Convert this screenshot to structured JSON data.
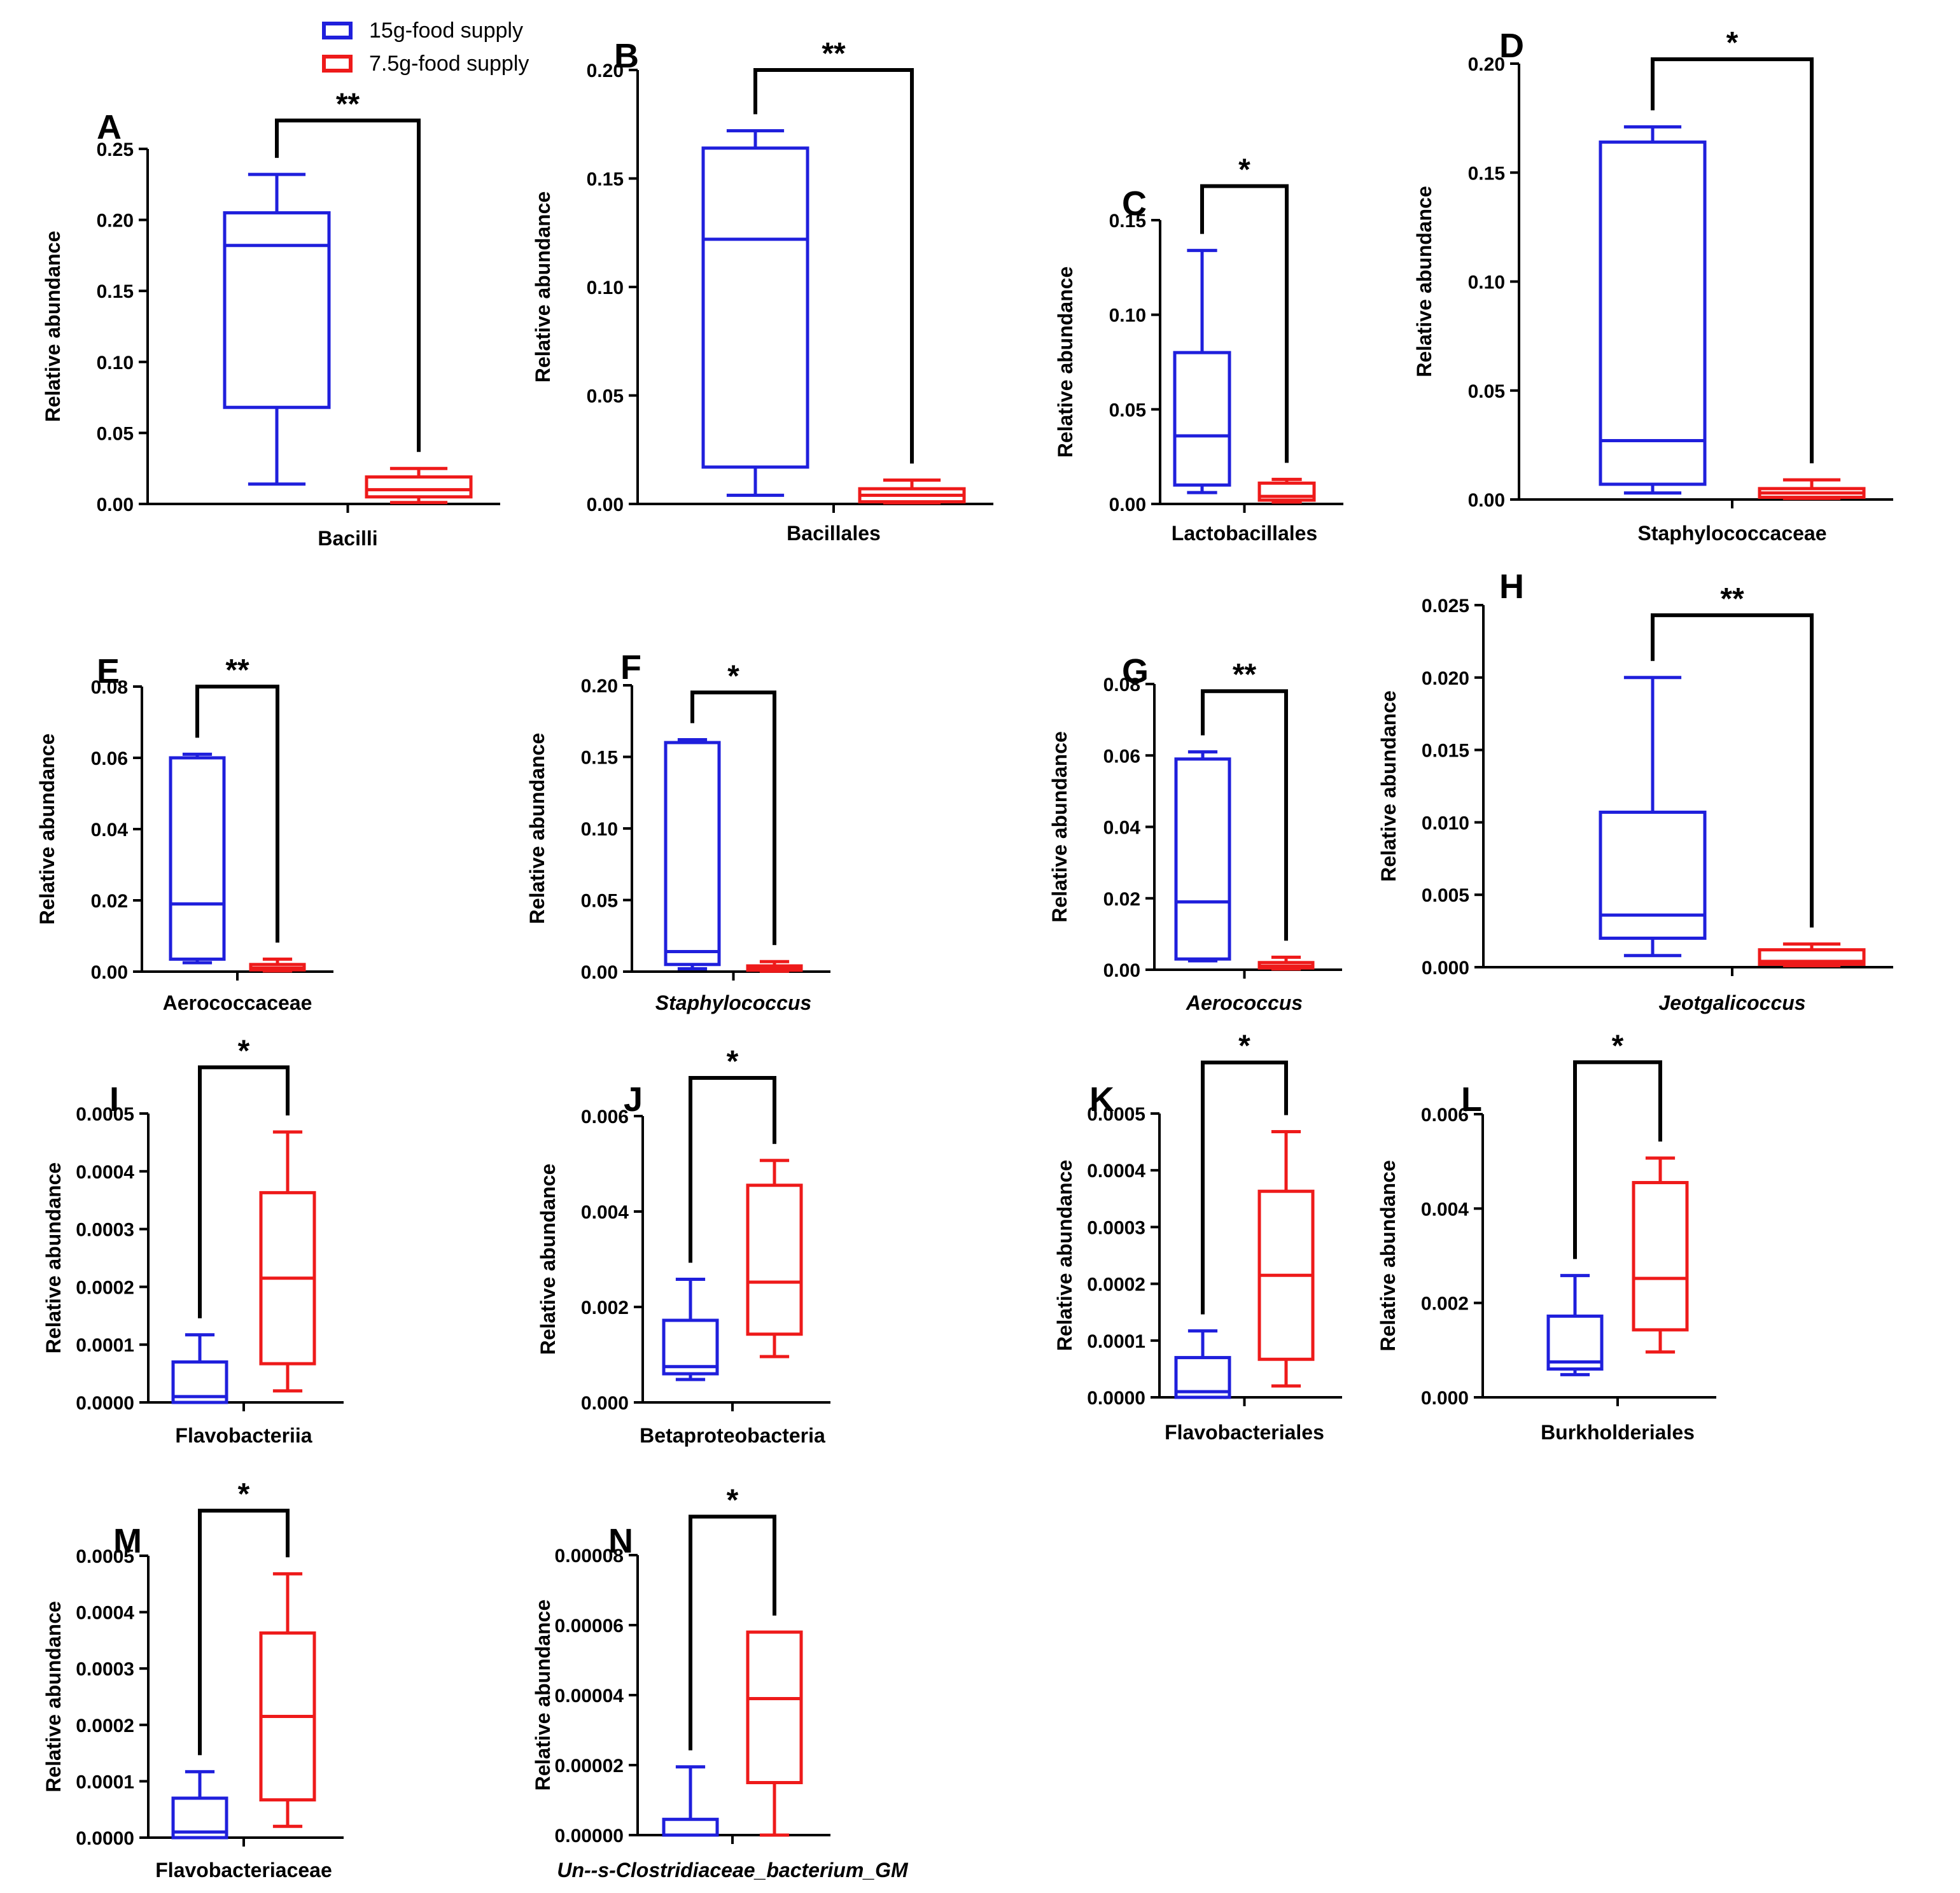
{
  "colors": {
    "group1": "#1f1fdc",
    "group2": "#ee1a1a",
    "axis": "#000000",
    "bracket": "#000000"
  },
  "legend": [
    {
      "label": "15g-food supply",
      "color": "#1f1fdc"
    },
    {
      "label": "7.5g-food supply",
      "color": "#ee1a1a"
    }
  ],
  "chart_data": [
    {
      "panel": "A",
      "type": "boxplot",
      "xlabel": "Bacilli",
      "xlabel_italic": false,
      "ylabel": "Relative abundance",
      "ylim": [
        0,
        0.25
      ],
      "ticks": [
        "0.00",
        "0.05",
        "0.10",
        "0.15",
        "0.20",
        "0.25"
      ],
      "tick_values": [
        0,
        0.05,
        0.1,
        0.15,
        0.2,
        0.25
      ],
      "groups": [
        {
          "name": "15g-food supply",
          "min": 0.014,
          "q1": 0.068,
          "median": 0.182,
          "q3": 0.205,
          "max": 0.232
        },
        {
          "name": "7.5g-food supply",
          "min": 0.001,
          "q1": 0.005,
          "median": 0.01,
          "q3": 0.019,
          "max": 0.025
        }
      ],
      "significance": "**",
      "bracket_height": 0.27
    },
    {
      "panel": "B",
      "type": "boxplot",
      "xlabel": "Bacillales",
      "xlabel_italic": false,
      "ylabel": "Relative abundance",
      "ylim": [
        0,
        0.2
      ],
      "ticks": [
        "0.00",
        "0.05",
        "0.10",
        "0.15",
        "0.20"
      ],
      "tick_values": [
        0,
        0.05,
        0.1,
        0.15,
        0.2
      ],
      "groups": [
        {
          "name": "15g-food supply",
          "min": 0.004,
          "q1": 0.017,
          "median": 0.122,
          "q3": 0.164,
          "max": 0.172
        },
        {
          "name": "7.5g-food supply",
          "min": 0.0005,
          "q1": 0.001,
          "median": 0.004,
          "q3": 0.007,
          "max": 0.011
        }
      ],
      "significance": "**",
      "bracket_height": 0.2
    },
    {
      "panel": "C",
      "type": "boxplot",
      "xlabel": "Lactobacillales",
      "xlabel_italic": false,
      "ylabel": "Relative abundance",
      "ylim": [
        0,
        0.15
      ],
      "ticks": [
        "0.00",
        "0.05",
        "0.10",
        "0.15"
      ],
      "tick_values": [
        0,
        0.05,
        0.1,
        0.15
      ],
      "groups": [
        {
          "name": "15g-food supply",
          "min": 0.006,
          "q1": 0.01,
          "median": 0.036,
          "q3": 0.08,
          "max": 0.134
        },
        {
          "name": "7.5g-food supply",
          "min": 0.001,
          "q1": 0.002,
          "median": 0.004,
          "q3": 0.011,
          "max": 0.013
        }
      ],
      "significance": "*",
      "bracket_height": 0.168
    },
    {
      "panel": "D",
      "type": "boxplot",
      "xlabel": "Staphylococcaceae",
      "xlabel_italic": false,
      "ylabel": "Relative abundance",
      "ylim": [
        0,
        0.2
      ],
      "ticks": [
        "0.00",
        "0.05",
        "0.10",
        "0.15",
        "0.20"
      ],
      "tick_values": [
        0,
        0.05,
        0.1,
        0.15,
        0.2
      ],
      "groups": [
        {
          "name": "15g-food supply",
          "min": 0.003,
          "q1": 0.007,
          "median": 0.027,
          "q3": 0.164,
          "max": 0.171
        },
        {
          "name": "7.5g-food supply",
          "min": 0.0005,
          "q1": 0.001,
          "median": 0.003,
          "q3": 0.005,
          "max": 0.009
        }
      ],
      "significance": "*",
      "bracket_height": 0.202
    },
    {
      "panel": "E",
      "type": "boxplot",
      "xlabel": "Aerococcaceae",
      "xlabel_italic": false,
      "ylabel": "Relative abundance",
      "ylim": [
        0,
        0.08
      ],
      "ticks": [
        "0.00",
        "0.02",
        "0.04",
        "0.06",
        "0.08"
      ],
      "tick_values": [
        0,
        0.02,
        0.04,
        0.06,
        0.08
      ],
      "groups": [
        {
          "name": "15g-food supply",
          "min": 0.0025,
          "q1": 0.0035,
          "median": 0.019,
          "q3": 0.06,
          "max": 0.061
        },
        {
          "name": "7.5g-food supply",
          "min": 0.0002,
          "q1": 0.0005,
          "median": 0.001,
          "q3": 0.002,
          "max": 0.0035
        }
      ],
      "significance": "**",
      "bracket_height": 0.08
    },
    {
      "panel": "F",
      "type": "boxplot",
      "xlabel": "Staphylococcus",
      "xlabel_italic": true,
      "ylabel": "Relative abundance",
      "ylim": [
        0,
        0.2
      ],
      "ticks": [
        "0.00",
        "0.05",
        "0.10",
        "0.15",
        "0.20"
      ],
      "tick_values": [
        0,
        0.05,
        0.1,
        0.15,
        0.2
      ],
      "groups": [
        {
          "name": "15g-food supply",
          "min": 0.002,
          "q1": 0.005,
          "median": 0.014,
          "q3": 0.16,
          "max": 0.162
        },
        {
          "name": "7.5g-food supply",
          "min": 0.0003,
          "q1": 0.001,
          "median": 0.002,
          "q3": 0.004,
          "max": 0.007
        }
      ],
      "significance": "*",
      "bracket_height": 0.195
    },
    {
      "panel": "G",
      "type": "boxplot",
      "xlabel": "Aerococcus",
      "xlabel_italic": true,
      "ylabel": "Relative abundance",
      "ylim": [
        0,
        0.08
      ],
      "ticks": [
        "0.00",
        "0.02",
        "0.04",
        "0.06",
        "0.08"
      ],
      "tick_values": [
        0,
        0.02,
        0.04,
        0.06,
        0.08
      ],
      "groups": [
        {
          "name": "15g-food supply",
          "min": 0.0025,
          "q1": 0.003,
          "median": 0.019,
          "q3": 0.059,
          "max": 0.061
        },
        {
          "name": "7.5g-food supply",
          "min": 0.0002,
          "q1": 0.0005,
          "median": 0.001,
          "q3": 0.002,
          "max": 0.0035
        }
      ],
      "significance": "**",
      "bracket_height": 0.078
    },
    {
      "panel": "H",
      "type": "boxplot",
      "xlabel": "Jeotgalicoccus",
      "xlabel_italic": true,
      "ylabel": "Relative abundance",
      "ylim": [
        0,
        0.025
      ],
      "ticks": [
        "0.000",
        "0.005",
        "0.010",
        "0.015",
        "0.020",
        "0.025"
      ],
      "tick_values": [
        0,
        0.005,
        0.01,
        0.015,
        0.02,
        0.025
      ],
      "groups": [
        {
          "name": "15g-food supply",
          "min": 0.0008,
          "q1": 0.002,
          "median": 0.0036,
          "q3": 0.0107,
          "max": 0.02
        },
        {
          "name": "7.5g-food supply",
          "min": 0.0001,
          "q1": 0.0002,
          "median": 0.0004,
          "q3": 0.0012,
          "max": 0.0016
        }
      ],
      "significance": "**",
      "bracket_height": 0.0243
    },
    {
      "panel": "I",
      "type": "boxplot",
      "xlabel": "Flavobacteriia",
      "xlabel_italic": false,
      "ylabel": "Relative abundance",
      "ylim": [
        0,
        0.0005
      ],
      "ticks": [
        "0.0000",
        "0.0001",
        "0.0002",
        "0.0003",
        "0.0004",
        "0.0005"
      ],
      "tick_values": [
        0,
        0.0001,
        0.0002,
        0.0003,
        0.0004,
        0.0005
      ],
      "groups": [
        {
          "name": "15g-food supply",
          "min": 0.0,
          "q1": 0.0,
          "median": 1e-05,
          "q3": 7e-05,
          "max": 0.000117
        },
        {
          "name": "7.5g-food supply",
          "min": 2e-05,
          "q1": 6.7e-05,
          "median": 0.000215,
          "q3": 0.000363,
          "max": 0.000468
        }
      ],
      "significance": "*",
      "bracket_height": 0.00058
    },
    {
      "panel": "J",
      "type": "boxplot",
      "xlabel": "Betaproteobacteria",
      "xlabel_italic": false,
      "ylabel": "Relative abundance",
      "ylim": [
        0,
        0.006
      ],
      "ticks": [
        "0.000",
        "0.002",
        "0.004",
        "0.006"
      ],
      "tick_values": [
        0,
        0.002,
        0.004,
        0.006
      ],
      "groups": [
        {
          "name": "15g-food supply",
          "min": 0.00048,
          "q1": 0.0006,
          "median": 0.00075,
          "q3": 0.00172,
          "max": 0.00258
        },
        {
          "name": "7.5g-food supply",
          "min": 0.00096,
          "q1": 0.00143,
          "median": 0.00252,
          "q3": 0.00455,
          "max": 0.00507
        }
      ],
      "significance": "*",
      "bracket_height": 0.0068
    },
    {
      "panel": "K",
      "type": "boxplot",
      "xlabel": "Flavobacteriales",
      "xlabel_italic": false,
      "ylabel": "Relative abundance",
      "ylim": [
        0,
        0.0005
      ],
      "ticks": [
        "0.0000",
        "0.0001",
        "0.0002",
        "0.0003",
        "0.0004",
        "0.0005"
      ],
      "tick_values": [
        0,
        0.0001,
        0.0002,
        0.0003,
        0.0004,
        0.0005
      ],
      "groups": [
        {
          "name": "15g-food supply",
          "min": 0.0,
          "q1": 0.0,
          "median": 1e-05,
          "q3": 7e-05,
          "max": 0.000117
        },
        {
          "name": "7.5g-food supply",
          "min": 2e-05,
          "q1": 6.7e-05,
          "median": 0.000215,
          "q3": 0.000363,
          "max": 0.000468
        }
      ],
      "significance": "*",
      "bracket_height": 0.00059
    },
    {
      "panel": "L",
      "type": "boxplot",
      "xlabel": "Burkholderiales",
      "xlabel_italic": false,
      "ylabel": "Relative abundance",
      "ylim": [
        0,
        0.006
      ],
      "ticks": [
        "0.000",
        "0.002",
        "0.004",
        "0.006"
      ],
      "tick_values": [
        0,
        0.002,
        0.004,
        0.006
      ],
      "groups": [
        {
          "name": "15g-food supply",
          "min": 0.00048,
          "q1": 0.0006,
          "median": 0.00075,
          "q3": 0.00172,
          "max": 0.00258
        },
        {
          "name": "7.5g-food supply",
          "min": 0.00096,
          "q1": 0.00143,
          "median": 0.00252,
          "q3": 0.00455,
          "max": 0.00507
        }
      ],
      "significance": "*",
      "bracket_height": 0.0071
    },
    {
      "panel": "M",
      "type": "boxplot",
      "xlabel": "Flavobacteriaceae",
      "xlabel_italic": false,
      "ylabel": "Relative abundance",
      "ylim": [
        0,
        0.0005
      ],
      "ticks": [
        "0.0000",
        "0.0001",
        "0.0002",
        "0.0003",
        "0.0004",
        "0.0005"
      ],
      "tick_values": [
        0,
        0.0001,
        0.0002,
        0.0003,
        0.0004,
        0.0005
      ],
      "groups": [
        {
          "name": "15g-food supply",
          "min": 0.0,
          "q1": 0.0,
          "median": 1e-05,
          "q3": 7e-05,
          "max": 0.000117
        },
        {
          "name": "7.5g-food supply",
          "min": 2e-05,
          "q1": 6.7e-05,
          "median": 0.000215,
          "q3": 0.000363,
          "max": 0.000468
        }
      ],
      "significance": "*",
      "bracket_height": 0.00058
    },
    {
      "panel": "N",
      "type": "boxplot",
      "xlabel": "Un--s-Clostridiaceae_bacterium_GM",
      "xlabel_italic": true,
      "ylabel": "Relative abundance",
      "ylim": [
        0,
        8e-05
      ],
      "ticks": [
        "0.00000",
        "0.00002",
        "0.00004",
        "0.00006",
        "0.00008"
      ],
      "tick_values": [
        0,
        2e-05,
        4e-05,
        6e-05,
        8e-05
      ],
      "groups": [
        {
          "name": "15g-food supply",
          "min": 0.0,
          "q1": 0.0,
          "median": 0.0,
          "q3": 4.5e-06,
          "max": 1.95e-05
        },
        {
          "name": "7.5g-food supply",
          "min": 0.0,
          "q1": 1.5e-05,
          "median": 3.9e-05,
          "q3": 5.8e-05,
          "max": 5.8e-05
        }
      ],
      "significance": "*",
      "bracket_height": 9.1e-05
    }
  ]
}
